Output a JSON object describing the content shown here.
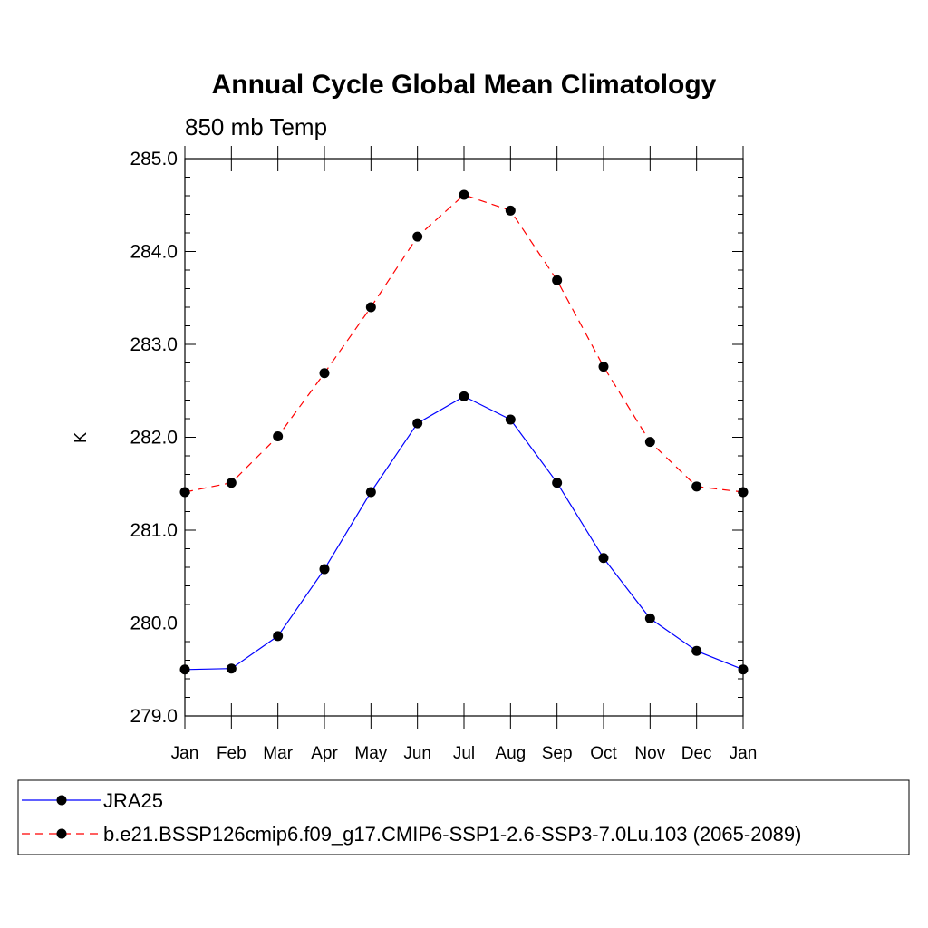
{
  "chart_data": {
    "type": "line",
    "title": "Annual Cycle Global Mean Climatology",
    "subtitle": "850 mb Temp",
    "ylabel": "K",
    "xlabel": "",
    "ylim": [
      279.0,
      285.0
    ],
    "y_ticks": [
      279.0,
      280.0,
      281.0,
      282.0,
      283.0,
      284.0,
      285.0
    ],
    "y_tick_labels": [
      "279.0",
      "280.0",
      "281.0",
      "282.0",
      "283.0",
      "284.0",
      "285.0"
    ],
    "categories": [
      "Jan",
      "Feb",
      "Mar",
      "Apr",
      "May",
      "Jun",
      "Jul",
      "Aug",
      "Sep",
      "Oct",
      "Nov",
      "Dec",
      "Jan"
    ],
    "grid": false,
    "legend_position": "bottom",
    "series": [
      {
        "name": "JRA25",
        "color": "#0000ff",
        "line_style": "solid",
        "marker": "filled-circle",
        "values": [
          279.5,
          279.51,
          279.86,
          280.58,
          281.41,
          282.15,
          282.44,
          282.19,
          281.51,
          280.7,
          280.05,
          279.7,
          279.5
        ]
      },
      {
        "name": "b.e21.BSSP126cmip6.f09_g17.CMIP6-SSP1-2.6-SSP3-7.0Lu.103 (2065-2089)",
        "color": "#ff0000",
        "line_style": "dashed",
        "marker": "filled-circle",
        "values": [
          281.41,
          281.51,
          282.01,
          282.69,
          283.4,
          284.16,
          284.61,
          284.44,
          283.69,
          282.76,
          281.95,
          281.47,
          281.41
        ]
      }
    ]
  }
}
